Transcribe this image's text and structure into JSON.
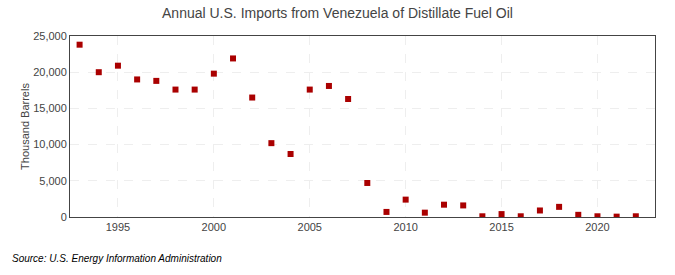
{
  "chart_data": {
    "type": "scatter",
    "title": "Annual U.S. Imports from Venezuela of Distillate Fuel Oil",
    "y_label": "Thousand Barrels",
    "source": "Source: U.S. Energy Information Administration",
    "x": [
      1993,
      1994,
      1995,
      1996,
      1997,
      1998,
      1999,
      2000,
      2001,
      2002,
      2003,
      2004,
      2005,
      2006,
      2007,
      2008,
      2009,
      2010,
      2011,
      2012,
      2013,
      2014,
      2015,
      2016,
      2017,
      2018,
      2019,
      2020,
      2021,
      2022
    ],
    "values": [
      23800,
      20000,
      20900,
      19000,
      18800,
      17600,
      17600,
      19800,
      21900,
      16500,
      10200,
      8700,
      17600,
      18100,
      16300,
      4700,
      700,
      2400,
      600,
      1700,
      1600,
      100,
      400,
      100,
      900,
      1400,
      300,
      100,
      50,
      100
    ],
    "color": "#aa0000",
    "marker": "square",
    "xlim": [
      1992.5,
      2023
    ],
    "ylim": [
      0,
      25000
    ],
    "xticks": [
      1995,
      2000,
      2005,
      2010,
      2015,
      2020
    ],
    "yticks": [
      0,
      {
        "value": 5000,
        "label": "5,000"
      },
      {
        "value": 10000,
        "label": "10,000"
      },
      {
        "value": 15000,
        "label": "15,000"
      },
      {
        "value": 20000,
        "label": "20,000"
      },
      {
        "value": 25000,
        "label": "25,000"
      }
    ],
    "grid": true
  }
}
